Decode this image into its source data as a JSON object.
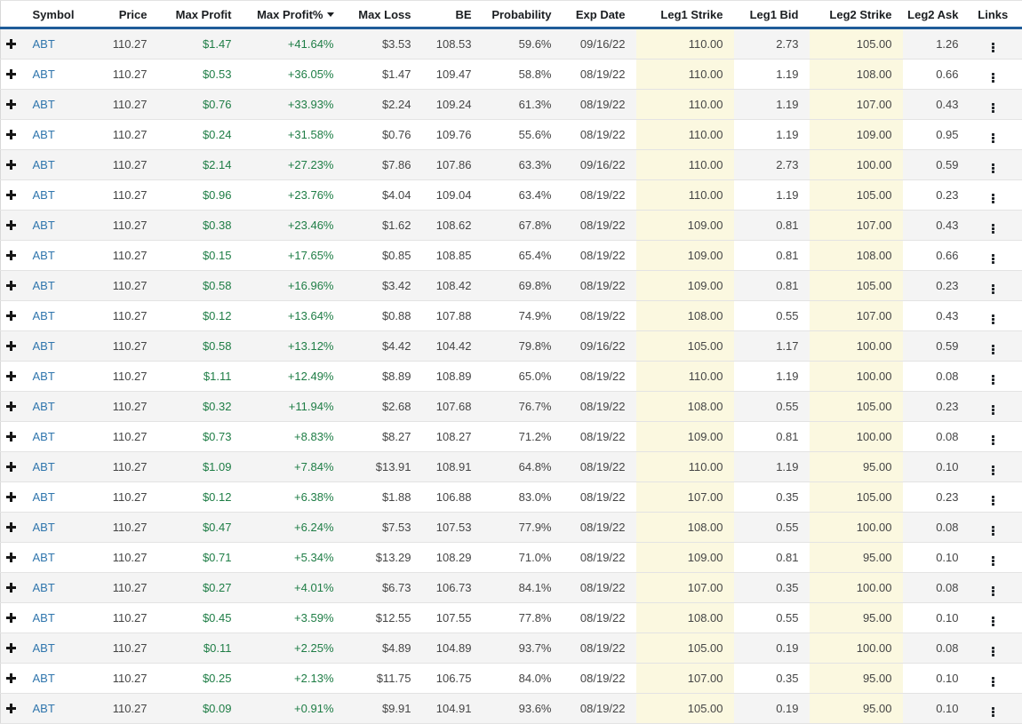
{
  "accent_colors": {
    "header_underline": "#1f5c99",
    "profit_green": "#1e7d45",
    "symbol_link_blue": "#3076ad",
    "strike_highlight_yellow": "#fbf8e0",
    "row_stripe_gray": "#f4f4f4"
  },
  "icons": {
    "expand_row": "plus-icon",
    "links_menu": "kebab-vertical-dots-icon",
    "sort_indicator": "triangle-down-icon"
  },
  "table": {
    "columns": [
      {
        "key": "expand",
        "label": "",
        "align": "center"
      },
      {
        "key": "symbol",
        "label": "Symbol",
        "align": "left"
      },
      {
        "key": "price",
        "label": "Price",
        "align": "right"
      },
      {
        "key": "max_profit",
        "label": "Max Profit",
        "align": "right",
        "color": "green"
      },
      {
        "key": "max_profit_pct",
        "label": "Max Profit%",
        "align": "right",
        "color": "green",
        "sorted": "desc"
      },
      {
        "key": "max_loss",
        "label": "Max Loss",
        "align": "right"
      },
      {
        "key": "be",
        "label": "BE",
        "align": "right"
      },
      {
        "key": "probability",
        "label": "Probability",
        "align": "right"
      },
      {
        "key": "exp_date",
        "label": "Exp Date",
        "align": "right"
      },
      {
        "key": "leg1_strike",
        "label": "Leg1 Strike",
        "align": "right",
        "highlight": true
      },
      {
        "key": "leg1_bid",
        "label": "Leg1 Bid",
        "align": "right"
      },
      {
        "key": "leg2_strike",
        "label": "Leg2 Strike",
        "align": "right",
        "highlight": true
      },
      {
        "key": "leg2_ask",
        "label": "Leg2 Ask",
        "align": "right"
      },
      {
        "key": "links",
        "label": "Links",
        "align": "center"
      }
    ],
    "rows": [
      {
        "symbol": "ABT",
        "price": "110.27",
        "max_profit": "$1.47",
        "max_profit_pct": "+41.64%",
        "max_loss": "$3.53",
        "be": "108.53",
        "probability": "59.6%",
        "exp_date": "09/16/22",
        "leg1_strike": "110.00",
        "leg1_bid": "2.73",
        "leg2_strike": "105.00",
        "leg2_ask": "1.26"
      },
      {
        "symbol": "ABT",
        "price": "110.27",
        "max_profit": "$0.53",
        "max_profit_pct": "+36.05%",
        "max_loss": "$1.47",
        "be": "109.47",
        "probability": "58.8%",
        "exp_date": "08/19/22",
        "leg1_strike": "110.00",
        "leg1_bid": "1.19",
        "leg2_strike": "108.00",
        "leg2_ask": "0.66"
      },
      {
        "symbol": "ABT",
        "price": "110.27",
        "max_profit": "$0.76",
        "max_profit_pct": "+33.93%",
        "max_loss": "$2.24",
        "be": "109.24",
        "probability": "61.3%",
        "exp_date": "08/19/22",
        "leg1_strike": "110.00",
        "leg1_bid": "1.19",
        "leg2_strike": "107.00",
        "leg2_ask": "0.43"
      },
      {
        "symbol": "ABT",
        "price": "110.27",
        "max_profit": "$0.24",
        "max_profit_pct": "+31.58%",
        "max_loss": "$0.76",
        "be": "109.76",
        "probability": "55.6%",
        "exp_date": "08/19/22",
        "leg1_strike": "110.00",
        "leg1_bid": "1.19",
        "leg2_strike": "109.00",
        "leg2_ask": "0.95"
      },
      {
        "symbol": "ABT",
        "price": "110.27",
        "max_profit": "$2.14",
        "max_profit_pct": "+27.23%",
        "max_loss": "$7.86",
        "be": "107.86",
        "probability": "63.3%",
        "exp_date": "09/16/22",
        "leg1_strike": "110.00",
        "leg1_bid": "2.73",
        "leg2_strike": "100.00",
        "leg2_ask": "0.59"
      },
      {
        "symbol": "ABT",
        "price": "110.27",
        "max_profit": "$0.96",
        "max_profit_pct": "+23.76%",
        "max_loss": "$4.04",
        "be": "109.04",
        "probability": "63.4%",
        "exp_date": "08/19/22",
        "leg1_strike": "110.00",
        "leg1_bid": "1.19",
        "leg2_strike": "105.00",
        "leg2_ask": "0.23"
      },
      {
        "symbol": "ABT",
        "price": "110.27",
        "max_profit": "$0.38",
        "max_profit_pct": "+23.46%",
        "max_loss": "$1.62",
        "be": "108.62",
        "probability": "67.8%",
        "exp_date": "08/19/22",
        "leg1_strike": "109.00",
        "leg1_bid": "0.81",
        "leg2_strike": "107.00",
        "leg2_ask": "0.43"
      },
      {
        "symbol": "ABT",
        "price": "110.27",
        "max_profit": "$0.15",
        "max_profit_pct": "+17.65%",
        "max_loss": "$0.85",
        "be": "108.85",
        "probability": "65.4%",
        "exp_date": "08/19/22",
        "leg1_strike": "109.00",
        "leg1_bid": "0.81",
        "leg2_strike": "108.00",
        "leg2_ask": "0.66"
      },
      {
        "symbol": "ABT",
        "price": "110.27",
        "max_profit": "$0.58",
        "max_profit_pct": "+16.96%",
        "max_loss": "$3.42",
        "be": "108.42",
        "probability": "69.8%",
        "exp_date": "08/19/22",
        "leg1_strike": "109.00",
        "leg1_bid": "0.81",
        "leg2_strike": "105.00",
        "leg2_ask": "0.23"
      },
      {
        "symbol": "ABT",
        "price": "110.27",
        "max_profit": "$0.12",
        "max_profit_pct": "+13.64%",
        "max_loss": "$0.88",
        "be": "107.88",
        "probability": "74.9%",
        "exp_date": "08/19/22",
        "leg1_strike": "108.00",
        "leg1_bid": "0.55",
        "leg2_strike": "107.00",
        "leg2_ask": "0.43"
      },
      {
        "symbol": "ABT",
        "price": "110.27",
        "max_profit": "$0.58",
        "max_profit_pct": "+13.12%",
        "max_loss": "$4.42",
        "be": "104.42",
        "probability": "79.8%",
        "exp_date": "09/16/22",
        "leg1_strike": "105.00",
        "leg1_bid": "1.17",
        "leg2_strike": "100.00",
        "leg2_ask": "0.59"
      },
      {
        "symbol": "ABT",
        "price": "110.27",
        "max_profit": "$1.11",
        "max_profit_pct": "+12.49%",
        "max_loss": "$8.89",
        "be": "108.89",
        "probability": "65.0%",
        "exp_date": "08/19/22",
        "leg1_strike": "110.00",
        "leg1_bid": "1.19",
        "leg2_strike": "100.00",
        "leg2_ask": "0.08"
      },
      {
        "symbol": "ABT",
        "price": "110.27",
        "max_profit": "$0.32",
        "max_profit_pct": "+11.94%",
        "max_loss": "$2.68",
        "be": "107.68",
        "probability": "76.7%",
        "exp_date": "08/19/22",
        "leg1_strike": "108.00",
        "leg1_bid": "0.55",
        "leg2_strike": "105.00",
        "leg2_ask": "0.23"
      },
      {
        "symbol": "ABT",
        "price": "110.27",
        "max_profit": "$0.73",
        "max_profit_pct": "+8.83%",
        "max_loss": "$8.27",
        "be": "108.27",
        "probability": "71.2%",
        "exp_date": "08/19/22",
        "leg1_strike": "109.00",
        "leg1_bid": "0.81",
        "leg2_strike": "100.00",
        "leg2_ask": "0.08"
      },
      {
        "symbol": "ABT",
        "price": "110.27",
        "max_profit": "$1.09",
        "max_profit_pct": "+7.84%",
        "max_loss": "$13.91",
        "be": "108.91",
        "probability": "64.8%",
        "exp_date": "08/19/22",
        "leg1_strike": "110.00",
        "leg1_bid": "1.19",
        "leg2_strike": "95.00",
        "leg2_ask": "0.10"
      },
      {
        "symbol": "ABT",
        "price": "110.27",
        "max_profit": "$0.12",
        "max_profit_pct": "+6.38%",
        "max_loss": "$1.88",
        "be": "106.88",
        "probability": "83.0%",
        "exp_date": "08/19/22",
        "leg1_strike": "107.00",
        "leg1_bid": "0.35",
        "leg2_strike": "105.00",
        "leg2_ask": "0.23"
      },
      {
        "symbol": "ABT",
        "price": "110.27",
        "max_profit": "$0.47",
        "max_profit_pct": "+6.24%",
        "max_loss": "$7.53",
        "be": "107.53",
        "probability": "77.9%",
        "exp_date": "08/19/22",
        "leg1_strike": "108.00",
        "leg1_bid": "0.55",
        "leg2_strike": "100.00",
        "leg2_ask": "0.08"
      },
      {
        "symbol": "ABT",
        "price": "110.27",
        "max_profit": "$0.71",
        "max_profit_pct": "+5.34%",
        "max_loss": "$13.29",
        "be": "108.29",
        "probability": "71.0%",
        "exp_date": "08/19/22",
        "leg1_strike": "109.00",
        "leg1_bid": "0.81",
        "leg2_strike": "95.00",
        "leg2_ask": "0.10"
      },
      {
        "symbol": "ABT",
        "price": "110.27",
        "max_profit": "$0.27",
        "max_profit_pct": "+4.01%",
        "max_loss": "$6.73",
        "be": "106.73",
        "probability": "84.1%",
        "exp_date": "08/19/22",
        "leg1_strike": "107.00",
        "leg1_bid": "0.35",
        "leg2_strike": "100.00",
        "leg2_ask": "0.08"
      },
      {
        "symbol": "ABT",
        "price": "110.27",
        "max_profit": "$0.45",
        "max_profit_pct": "+3.59%",
        "max_loss": "$12.55",
        "be": "107.55",
        "probability": "77.8%",
        "exp_date": "08/19/22",
        "leg1_strike": "108.00",
        "leg1_bid": "0.55",
        "leg2_strike": "95.00",
        "leg2_ask": "0.10"
      },
      {
        "symbol": "ABT",
        "price": "110.27",
        "max_profit": "$0.11",
        "max_profit_pct": "+2.25%",
        "max_loss": "$4.89",
        "be": "104.89",
        "probability": "93.7%",
        "exp_date": "08/19/22",
        "leg1_strike": "105.00",
        "leg1_bid": "0.19",
        "leg2_strike": "100.00",
        "leg2_ask": "0.08"
      },
      {
        "symbol": "ABT",
        "price": "110.27",
        "max_profit": "$0.25",
        "max_profit_pct": "+2.13%",
        "max_loss": "$11.75",
        "be": "106.75",
        "probability": "84.0%",
        "exp_date": "08/19/22",
        "leg1_strike": "107.00",
        "leg1_bid": "0.35",
        "leg2_strike": "95.00",
        "leg2_ask": "0.10"
      },
      {
        "symbol": "ABT",
        "price": "110.27",
        "max_profit": "$0.09",
        "max_profit_pct": "+0.91%",
        "max_loss": "$9.91",
        "be": "104.91",
        "probability": "93.6%",
        "exp_date": "08/19/22",
        "leg1_strike": "105.00",
        "leg1_bid": "0.19",
        "leg2_strike": "95.00",
        "leg2_ask": "0.10"
      }
    ]
  }
}
